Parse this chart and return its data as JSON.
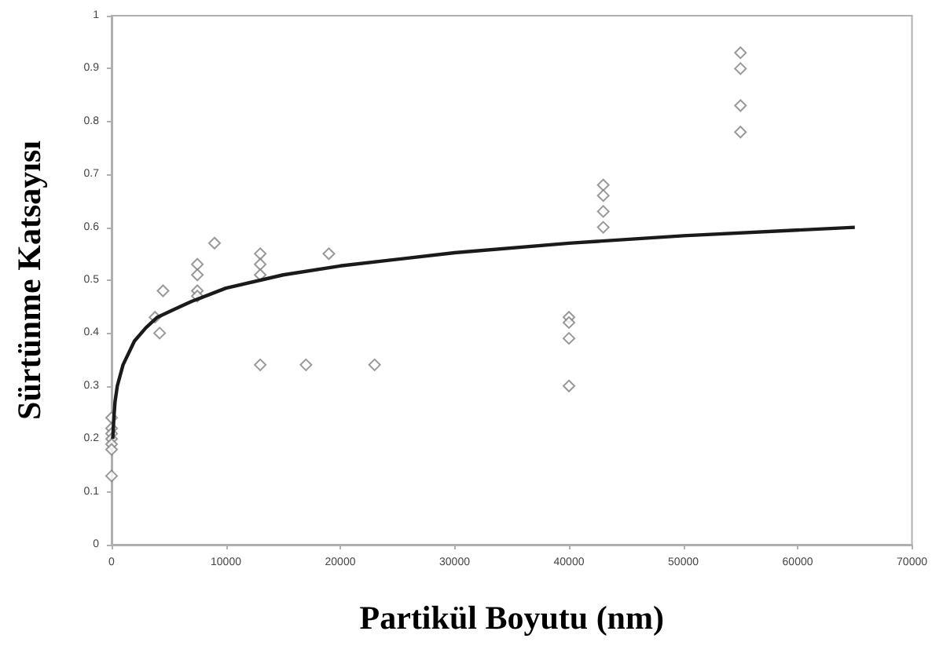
{
  "chart_data": {
    "type": "scatter",
    "xlabel": "Partikül Boyutu (nm)",
    "ylabel": "Sürtünme Katsayısı",
    "xlim": [
      0,
      70000
    ],
    "xticks": [
      0,
      10000,
      20000,
      30000,
      40000,
      50000,
      60000,
      70000
    ],
    "ylim": [
      0,
      1
    ],
    "yticks": [
      0,
      0.1,
      0.2,
      0.3,
      0.4,
      0.5,
      0.6,
      0.7,
      0.8,
      0.9,
      1
    ],
    "grid": false,
    "marker": "diamond",
    "series": [
      {
        "color": "#808080",
        "x": [
          0,
          0,
          0,
          0,
          0,
          0,
          0,
          3800,
          4200,
          4500,
          7500,
          7500,
          7500,
          7500,
          9000,
          13000,
          13000,
          13000,
          13000,
          17000,
          19000,
          23000,
          40000,
          40000,
          40000,
          40000,
          43000,
          43000,
          43000,
          43000,
          55000,
          55000,
          55000,
          55000
        ],
        "values": [
          0.24,
          0.22,
          0.21,
          0.2,
          0.19,
          0.18,
          0.13,
          0.43,
          0.4,
          0.48,
          0.53,
          0.51,
          0.48,
          0.47,
          0.57,
          0.55,
          0.53,
          0.51,
          0.34,
          0.34,
          0.55,
          0.34,
          0.43,
          0.42,
          0.39,
          0.3,
          0.68,
          0.66,
          0.63,
          0.6,
          0.93,
          0.9,
          0.83,
          0.78
        ]
      },
      {
        "type": "line",
        "color": "#1a1a1a",
        "marker": "none",
        "x": [
          100,
          200,
          300,
          500,
          1000,
          2000,
          3000,
          4000,
          5500,
          7000,
          10000,
          15000,
          20000,
          30000,
          40000,
          50000,
          65000
        ],
        "values": [
          0.2,
          0.24,
          0.27,
          0.3,
          0.34,
          0.385,
          0.41,
          0.43,
          0.445,
          0.46,
          0.485,
          0.51,
          0.527,
          0.552,
          0.57,
          0.584,
          0.6
        ]
      }
    ]
  }
}
